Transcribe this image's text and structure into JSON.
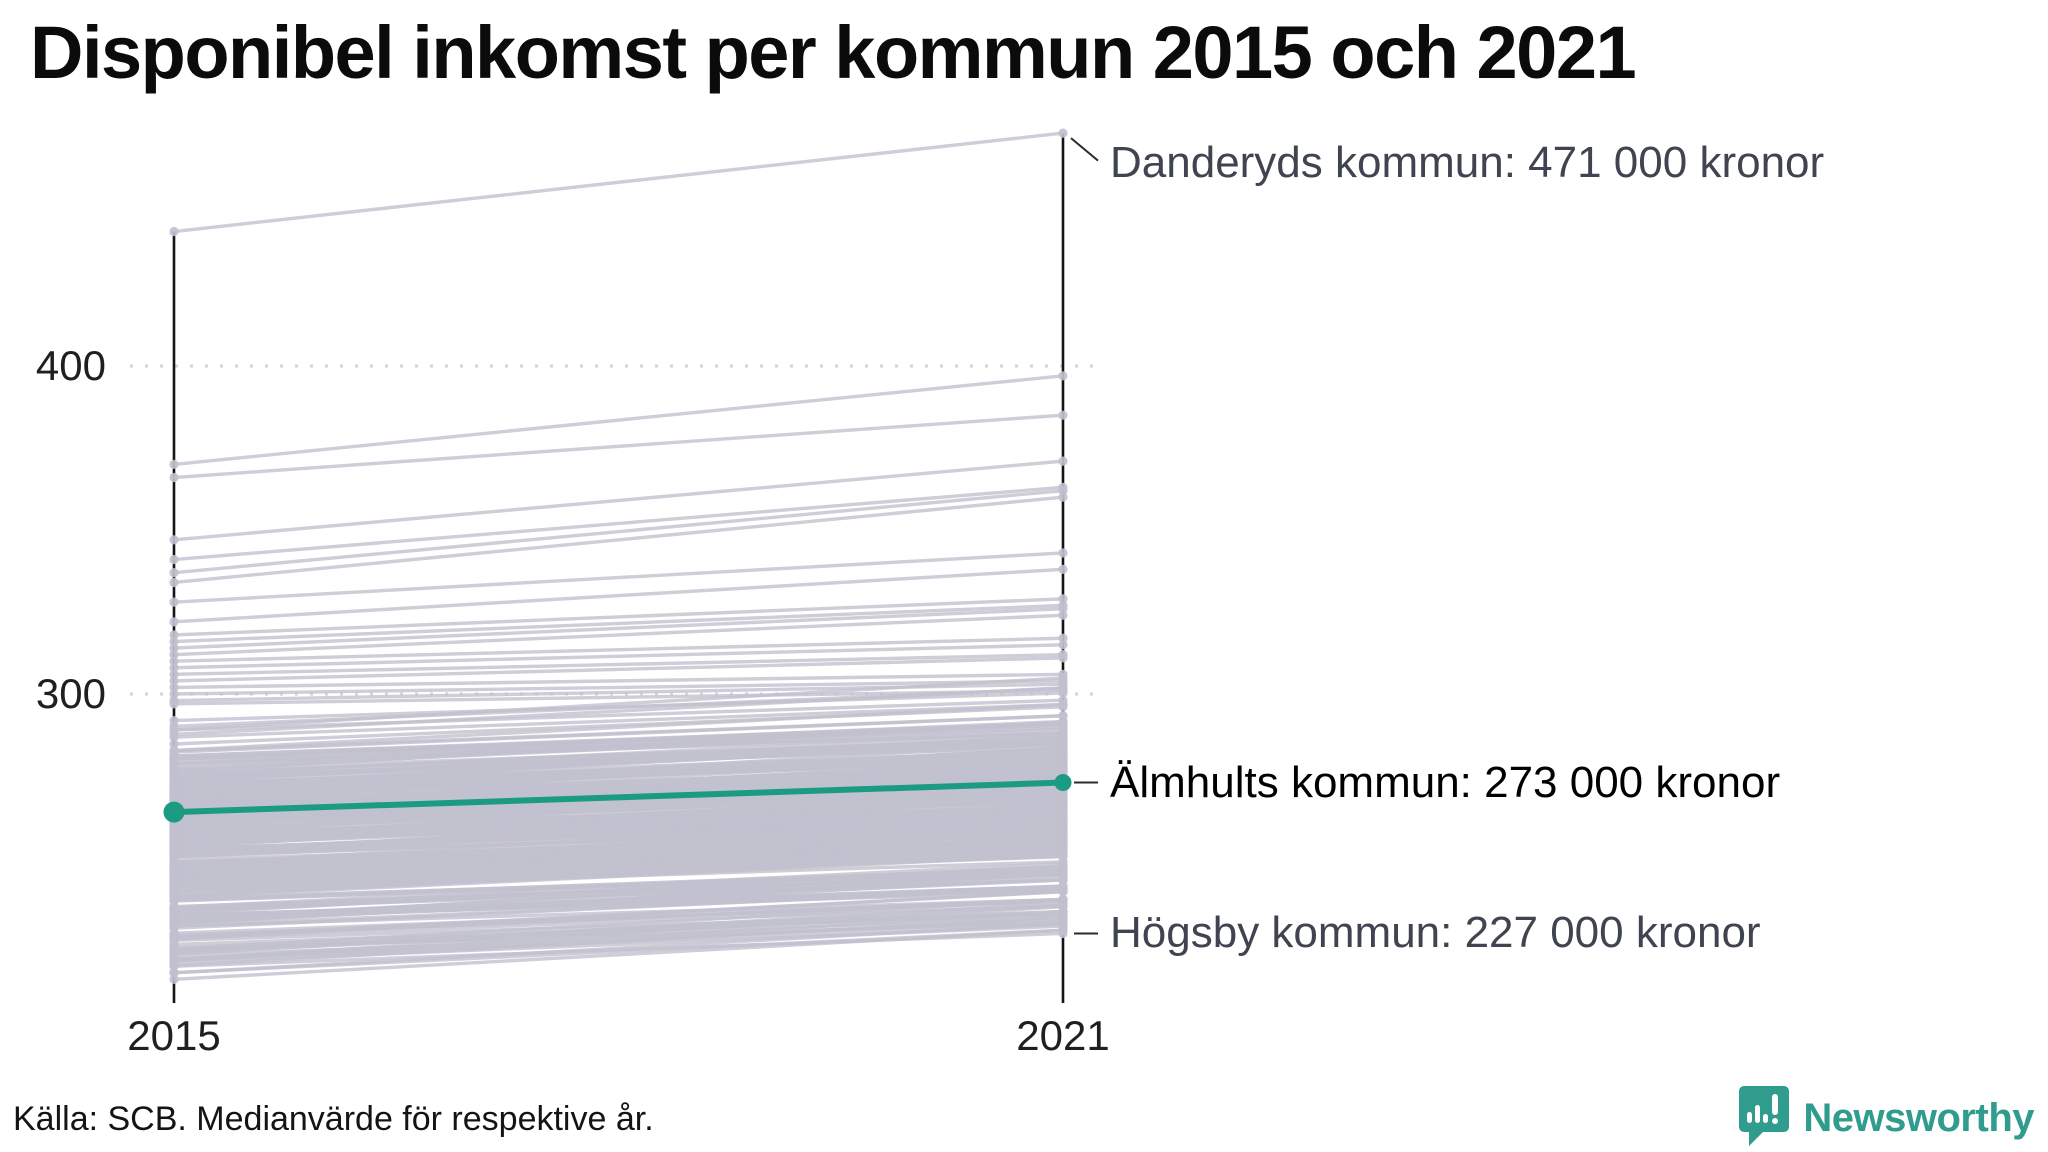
{
  "title": "Disponibel inkomst per kommun 2015 och 2021",
  "source": "Källa: SCB. Medianvärde för respektive år.",
  "logo": {
    "text": "Newsworthy",
    "color": "#2f9c8d"
  },
  "chart_data": {
    "type": "line",
    "subtype": "slope-chart",
    "x": [
      2015,
      2021
    ],
    "x_labels": [
      "2015",
      "2021"
    ],
    "y_ticks": [
      {
        "value": 400,
        "label": "400"
      },
      {
        "value": 300,
        "label": "300"
      }
    ],
    "ylim": [
      205,
      480
    ],
    "y_unit": "tusen kronor",
    "grid": "dotted-horizontal",
    "highlight_color": "#1a9b82",
    "background_line_color": "#c2c0ce",
    "axis_color": "#141414",
    "gridline_color": "#d6d6d6",
    "annotations": [
      {
        "key": "danderyd",
        "label": "Danderyds kommun: 471 000 kronor",
        "values": [
          441,
          471
        ],
        "label_y_value": 462,
        "emphasis": false,
        "leader": "diagonal"
      },
      {
        "key": "almhult",
        "label": "Älmhults kommun: 273 000 kronor",
        "values": [
          264,
          273
        ],
        "label_y_value": 273,
        "emphasis": true,
        "leader": "horizontal"
      },
      {
        "key": "hogsby",
        "label": "Högsby kommun: 227 000 kronor",
        "values": [
          217,
          227
        ],
        "label_y_value": 227,
        "emphasis": false,
        "leader": "horizontal"
      }
    ],
    "highlighted_series": {
      "name": "Älmhults kommun",
      "values": [
        264,
        273
      ]
    },
    "background_series": [
      [
        441,
        471
      ],
      [
        370,
        397
      ],
      [
        366,
        385
      ],
      [
        347,
        371
      ],
      [
        341,
        363
      ],
      [
        337,
        362
      ],
      [
        334,
        360
      ],
      [
        328,
        343
      ],
      [
        322,
        338
      ],
      [
        318,
        329
      ],
      [
        316,
        327
      ],
      [
        314,
        326
      ],
      [
        312,
        324
      ],
      [
        310,
        317
      ],
      [
        308,
        315
      ],
      [
        306,
        312
      ],
      [
        304,
        311
      ],
      [
        302,
        306
      ],
      [
        300,
        304
      ],
      [
        298,
        303
      ],
      [
        297,
        301
      ],
      [
        219,
        233
      ],
      [
        215,
        230
      ],
      [
        213,
        228
      ],
      [
        217,
        227
      ]
    ],
    "background_band": {
      "description": "Remaining Swedish municipalities, dense band of gray slope lines",
      "count": 264,
      "v2015_range": [
        213,
        296
      ],
      "delta_range": [
        8,
        16
      ],
      "v2021_max": 310,
      "v2021_min": 228,
      "seed": 11
    }
  }
}
